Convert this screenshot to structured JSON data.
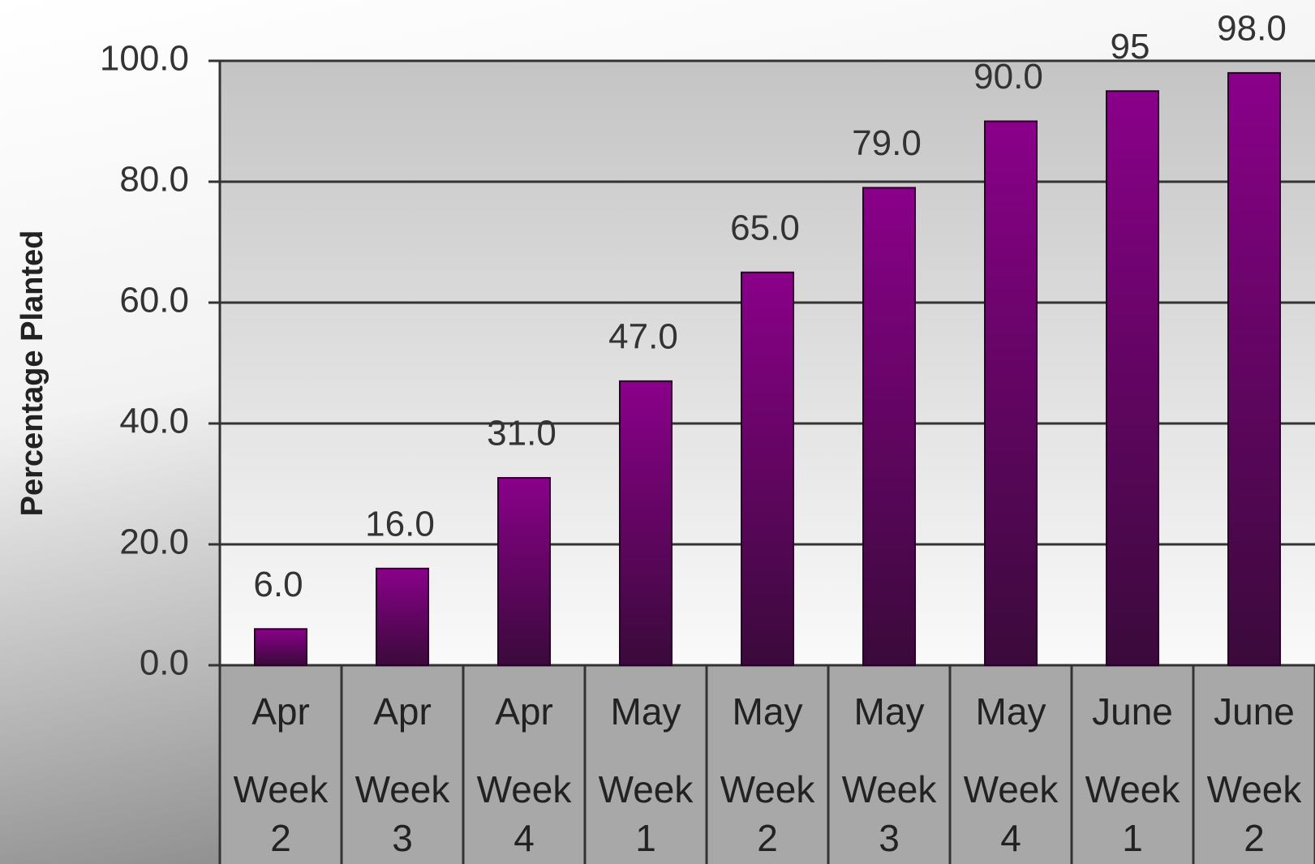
{
  "chart_data": {
    "type": "bar",
    "y_label": "Percentage Planted",
    "categories": [
      [
        "Apr",
        "Week",
        "2"
      ],
      [
        "Apr",
        "Week",
        "3"
      ],
      [
        "Apr",
        "Week",
        "4"
      ],
      [
        "May",
        "Week",
        "1"
      ],
      [
        "May",
        "Week",
        "2"
      ],
      [
        "May",
        "Week",
        "3"
      ],
      [
        "May",
        "Week",
        "4"
      ],
      [
        "June",
        "Week",
        "1"
      ],
      [
        "June",
        "Week",
        "2"
      ]
    ],
    "values": [
      6,
      16,
      31,
      47,
      65,
      79,
      90,
      95,
      98
    ],
    "value_labels": [
      "6.0",
      "16.0",
      "31.0",
      "47.0",
      "65.0",
      "79.0",
      "90.0",
      "95",
      "98.0"
    ],
    "color": "#800080",
    "ylim": [
      0,
      100
    ],
    "yticks": [
      {
        "value": 0,
        "label": "0.0"
      },
      {
        "value": 20,
        "label": "20.0"
      },
      {
        "value": 40,
        "label": "40.0"
      },
      {
        "value": 60,
        "label": "60.0"
      },
      {
        "value": 80,
        "label": "80.0"
      },
      {
        "value": 100,
        "label": "100.0"
      }
    ],
    "grid": true
  }
}
